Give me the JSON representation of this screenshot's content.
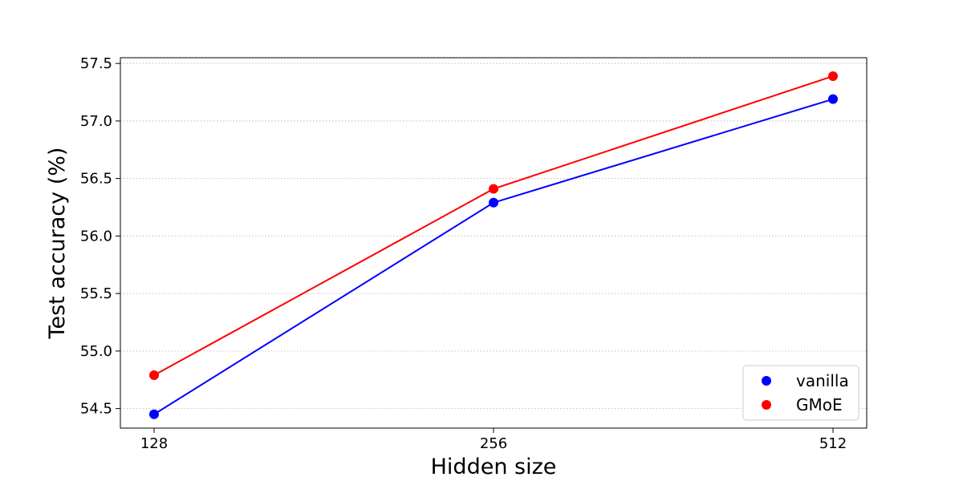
{
  "chart_data": {
    "type": "line",
    "title": "",
    "xlabel": "Hidden size",
    "ylabel": "Test accuracy (%)",
    "categories": [
      "128",
      "256",
      "512"
    ],
    "y_ticks": [
      "54.5",
      "55.0",
      "55.5",
      "56.0",
      "56.5",
      "57.0",
      "57.5"
    ],
    "ylim": [
      54.33,
      57.55
    ],
    "grid": "horizontal dotted",
    "legend_position": "lower-right",
    "series": [
      {
        "name": "vanilla",
        "color": "#0000ff",
        "values": [
          54.45,
          56.29,
          57.19
        ]
      },
      {
        "name": "GMoE",
        "color": "#ff0000",
        "values": [
          54.79,
          56.41,
          57.39
        ]
      }
    ]
  }
}
